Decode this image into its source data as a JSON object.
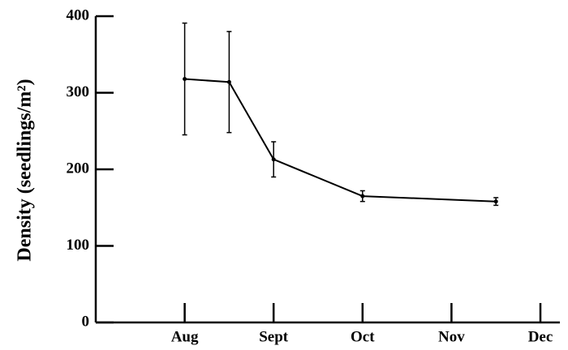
{
  "chart_data": {
    "type": "line",
    "y_label": "Density (seedlings/m²)",
    "categories": [
      null,
      null,
      "Aug",
      null,
      "Sept",
      null,
      "Oct",
      null,
      "Nov",
      null,
      "Dec"
    ],
    "values": [
      null,
      null,
      318,
      314,
      213,
      null,
      165,
      null,
      null,
      158,
      null
    ],
    "errors": [
      null,
      null,
      73,
      66,
      23,
      null,
      7,
      null,
      null,
      5,
      null
    ],
    "color": "#000000",
    "ylim": [
      0,
      400
    ],
    "yticks": [
      0,
      100,
      200,
      300,
      400
    ]
  }
}
